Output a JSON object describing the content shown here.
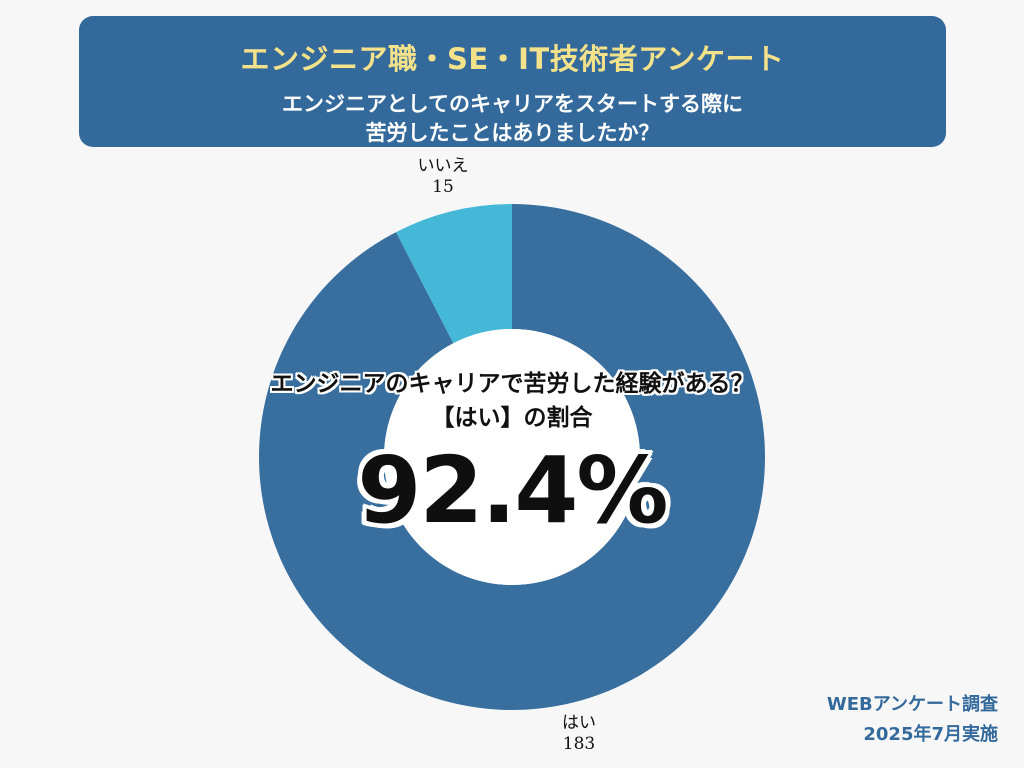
{
  "header": {
    "title": "エンジニア職・SE・IT技術者アンケート",
    "question_line1": "エンジニアとしてのキャリアをスタートする際に",
    "question_line2": "苦労したことはありましたか？"
  },
  "center": {
    "question_line1": "エンジニアのキャリアで苦労した経験がある？",
    "question_line2": "【はい】の割合",
    "percent": "92.4%"
  },
  "footer": {
    "line1": "WEBアンケート調査",
    "line2": "2025年7月実施"
  },
  "colors": {
    "banner": "#346a9b",
    "title_accent": "#f4e28a",
    "slice_hai": "#386f9f",
    "slice_iie": "#45b8d8",
    "footer_text": "#346a9b"
  },
  "chart_data": {
    "type": "pie",
    "donut": true,
    "categories": [
      "はい",
      "いいえ"
    ],
    "values": [
      183,
      15
    ],
    "value_labels": [
      "183",
      "15"
    ],
    "colors": [
      "#386f9f",
      "#45b8d8"
    ],
    "start": "top",
    "direction": "clockwise"
  }
}
